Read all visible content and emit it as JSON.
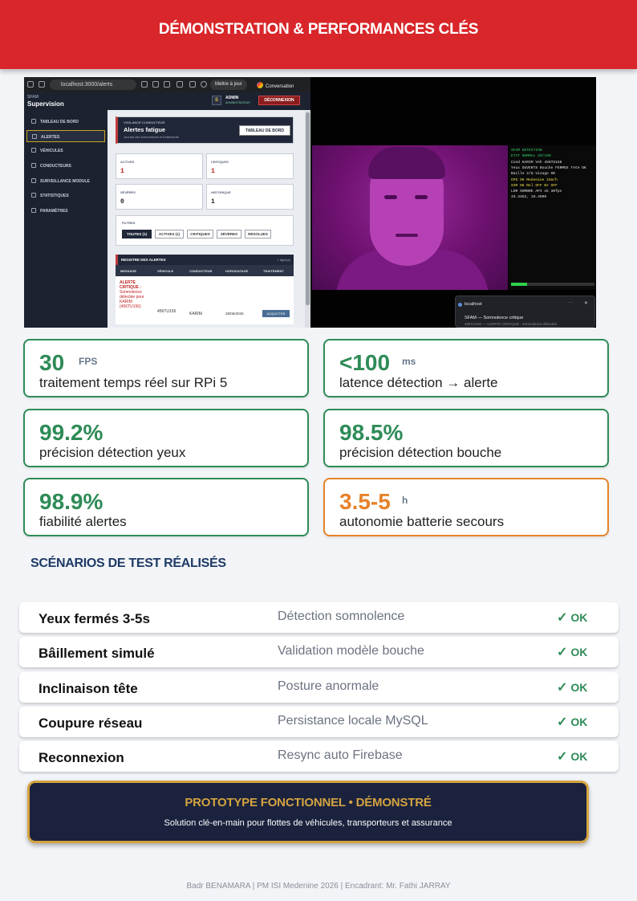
{
  "header": {
    "title": "DÉMONSTRATION & PERFORMANCES CLÉS"
  },
  "screenshot": {
    "browser": {
      "url": "localhost:3000/alerts",
      "update_button": "Mettre à jour",
      "conversation_button": "Conversation"
    },
    "sidebar": {
      "brand_small": "SFAM",
      "brand": "Supervision",
      "items": [
        {
          "label": "TABLEAU DE BORD",
          "icon": "dashboard-icon"
        },
        {
          "label": "ALERTES",
          "icon": "alert-triangle-icon",
          "active": true
        },
        {
          "label": "VÉHICULES",
          "icon": "truck-icon"
        },
        {
          "label": "CONDUCTEURS",
          "icon": "users-icon"
        },
        {
          "label": "SURVEILLANCE MODULE",
          "icon": "shield-icon"
        },
        {
          "label": "STATISTIQUES",
          "icon": "chart-icon"
        },
        {
          "label": "PARAMÈTRES",
          "icon": "gear-icon"
        }
      ]
    },
    "topbar": {
      "avatar": "S",
      "user": "ADMIN",
      "role": "ADMINISTRATEUR",
      "logout": "DÉCONNEXION"
    },
    "hero": {
      "kicker": "VIGILANCE CONDUCTEUR",
      "title": "Alertes fatigue",
      "subtitle": "Journal des événements et traitements",
      "button": "TABLEAU DE BORD"
    },
    "stats": [
      {
        "label": "ACTIVES",
        "value": "1"
      },
      {
        "label": "CRITIQUES",
        "value": "1"
      },
      {
        "label": "SÉVÈRES",
        "value": "0"
      },
      {
        "label": "HISTORIQUE",
        "value": "1"
      }
    ],
    "filters": {
      "label": "FILTRES",
      "chips": [
        "TOUTES (1)",
        "ACTIVES (1)",
        "CRITIQUES",
        "SÉVÈRES",
        "RÉSOLUES"
      ]
    },
    "register": {
      "title": "REGISTRE DES ALERTES",
      "count": "1 ligne(s)",
      "columns": [
        "MESSAGE",
        "VÉHICULE",
        "CONDUCTEUR",
        "HORODATAGE",
        "TRAITEMENT"
      ],
      "row": {
        "message_title": "ALERTE CRITIQUE :",
        "message_body": "Somnolence détectée pour KARIM (456TU156)",
        "vehicle": "456TU156",
        "driver": "KARIM",
        "timestamp": "28/06/2026",
        "action": "ACQUITTER"
      }
    },
    "camera": {
      "hud_lines": [
        {
          "text": "SFAM DETECTION",
          "color": "#35d16a"
        },
        {
          "text": "ETAT NORMAL  20/100",
          "color": "#35d16a"
        },
        {
          "text": "Cond KARIM  Veh 456TU156",
          "color": "#e6e6e6"
        },
        {
          "text": "Yeux OUVERTS  Bouche FERMEE  Tete OK",
          "color": "#e6e6e6"
        },
        {
          "text": "Baille 2/m  Visage OK",
          "color": "#e6e6e6"
        },
        {
          "text": "GPS OK Medenine 1km/h",
          "color": "#f2e14a"
        },
        {
          "text": "SIM OK  Rel OFF  Bz OFF",
          "color": "#f2e14a"
        },
        {
          "text": "LDR SOMBRE  API ok  30fps",
          "color": "#e6e6e6"
        },
        {
          "text": "33.3462, 10.4990",
          "color": "#e6e6e6"
        }
      ],
      "toast": {
        "app": "localhost",
        "message": "SFAM — Somnolence critique",
        "sub": "456TU156 — ALERTE CRITIQUE : Somnolence détectée"
      }
    }
  },
  "kpis": [
    {
      "value": "30",
      "unit": "FPS",
      "label": "traitement temps réel sur RPi 5",
      "accent": "#2e8b57"
    },
    {
      "value": "<100",
      "unit": "ms",
      "label": "latence détection → alerte",
      "accent": "#2e8b57"
    },
    {
      "value": "99.2%",
      "unit": "",
      "label": "précision détection yeux",
      "accent": "#2e8b57"
    },
    {
      "value": "98.5%",
      "unit": "",
      "label": "précision détection bouche",
      "accent": "#2e8b57"
    },
    {
      "value": "98.9%",
      "unit": "",
      "label": "fiabilité alertes",
      "accent": "#2e8b57"
    },
    {
      "value": "3.5-5",
      "unit": "h",
      "label": "autonomie batterie secours",
      "accent": "#e6832a"
    }
  ],
  "scenarios": {
    "title": "SCÉNARIOS DE TEST RÉALISÉS",
    "rows": [
      {
        "name": "Yeux fermés 3-5s",
        "desc": "Détection somnolence",
        "status": "OK"
      },
      {
        "name": "Bâillement simulé",
        "desc": "Validation modèle bouche",
        "status": "OK"
      },
      {
        "name": "Inclinaison tête",
        "desc": "Posture anormale",
        "status": "OK"
      },
      {
        "name": "Coupure réseau",
        "desc": "Persistance locale MySQL",
        "status": "OK"
      },
      {
        "name": "Reconnexion",
        "desc": "Resync auto Firebase",
        "status": "OK"
      }
    ]
  },
  "banner": {
    "title": "PROTOTYPE FONCTIONNEL • DÉMONSTRÉ",
    "subtitle": "Solution clé-en-main pour flottes de véhicules, transporteurs et assurance"
  },
  "footer": "Badr BENAMARA | PM ISI Medenine 2026 | Encadrant: Mr. Fathi JARRAY"
}
